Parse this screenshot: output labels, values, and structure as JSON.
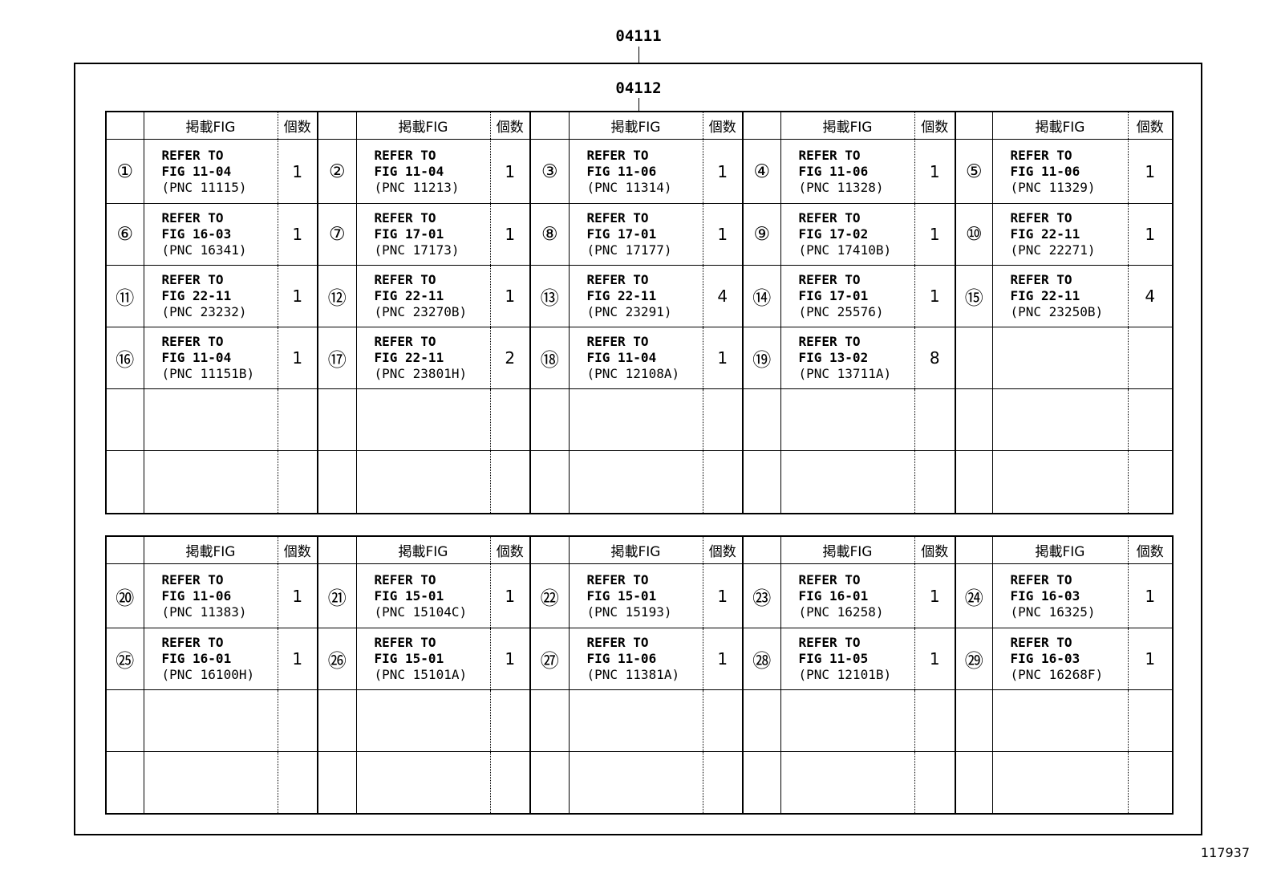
{
  "labels": {
    "outer": "04111",
    "inner": "04112",
    "figure_id": "117937"
  },
  "headers": {
    "fig": "掲載FIG",
    "qty": "個数"
  },
  "tables": [
    {
      "rows": [
        [
          {
            "num": "①",
            "l1": "REFER TO",
            "fig": "FIG 11-04",
            "pnc": "(PNC 11115)",
            "qty": "1"
          },
          {
            "num": "②",
            "l1": "REFER TO",
            "fig": "FIG 11-04",
            "pnc": "(PNC 11213)",
            "qty": "1"
          },
          {
            "num": "③",
            "l1": "REFER TO",
            "fig": "FIG 11-06",
            "pnc": "(PNC 11314)",
            "qty": "1"
          },
          {
            "num": "④",
            "l1": "REFER TO",
            "fig": "FIG 11-06",
            "pnc": "(PNC 11328)",
            "qty": "1"
          },
          {
            "num": "⑤",
            "l1": "REFER TO",
            "fig": "FIG 11-06",
            "pnc": "(PNC 11329)",
            "qty": "1"
          }
        ],
        [
          {
            "num": "⑥",
            "l1": "REFER TO",
            "fig": "FIG 16-03",
            "pnc": "(PNC 16341)",
            "qty": "1"
          },
          {
            "num": "⑦",
            "l1": "REFER TO",
            "fig": "FIG 17-01",
            "pnc": "(PNC 17173)",
            "qty": "1"
          },
          {
            "num": "⑧",
            "l1": "REFER TO",
            "fig": "FIG 17-01",
            "pnc": "(PNC 17177)",
            "qty": "1"
          },
          {
            "num": "⑨",
            "l1": "REFER TO",
            "fig": "FIG 17-02",
            "pnc": "(PNC 17410B)",
            "qty": "1"
          },
          {
            "num": "⑩",
            "l1": "REFER TO",
            "fig": "FIG 22-11",
            "pnc": "(PNC 22271)",
            "qty": "1"
          }
        ],
        [
          {
            "num": "⑪",
            "l1": "REFER TO",
            "fig": "FIG 22-11",
            "pnc": "(PNC 23232)",
            "qty": "1"
          },
          {
            "num": "⑫",
            "l1": "REFER TO",
            "fig": "FIG 22-11",
            "pnc": "(PNC 23270B)",
            "qty": "1"
          },
          {
            "num": "⑬",
            "l1": "REFER TO",
            "fig": "FIG 22-11",
            "pnc": "(PNC 23291)",
            "qty": "4"
          },
          {
            "num": "⑭",
            "l1": "REFER TO",
            "fig": "FIG 17-01",
            "pnc": "(PNC 25576)",
            "qty": "1"
          },
          {
            "num": "⑮",
            "l1": "REFER TO",
            "fig": "FIG 22-11",
            "pnc": "(PNC 23250B)",
            "qty": "4"
          }
        ],
        [
          {
            "num": "⑯",
            "l1": "REFER TO",
            "fig": "FIG 11-04",
            "pnc": "(PNC 11151B)",
            "qty": "1"
          },
          {
            "num": "⑰",
            "l1": "REFER TO",
            "fig": "FIG 22-11",
            "pnc": "(PNC 23801H)",
            "qty": "2"
          },
          {
            "num": "⑱",
            "l1": "REFER TO",
            "fig": "FIG 11-04",
            "pnc": "(PNC 12108A)",
            "qty": "1"
          },
          {
            "num": "⑲",
            "l1": "REFER TO",
            "fig": "FIG 13-02",
            "pnc": "(PNC 13711A)",
            "qty": "8"
          },
          null
        ],
        [
          null,
          null,
          null,
          null,
          null
        ],
        [
          null,
          null,
          null,
          null,
          null
        ]
      ]
    },
    {
      "rows": [
        [
          {
            "num": "⑳",
            "l1": "REFER TO",
            "fig": "FIG 11-06",
            "pnc": "(PNC 11383)",
            "qty": "1"
          },
          {
            "num": "㉑",
            "l1": "REFER TO",
            "fig": "FIG 15-01",
            "pnc": "(PNC 15104C)",
            "qty": "1"
          },
          {
            "num": "㉒",
            "l1": "REFER TO",
            "fig": "FIG 15-01",
            "pnc": "(PNC 15193)",
            "qty": "1"
          },
          {
            "num": "㉓",
            "l1": "REFER TO",
            "fig": "FIG 16-01",
            "pnc": "(PNC 16258)",
            "qty": "1"
          },
          {
            "num": "㉔",
            "l1": "REFER TO",
            "fig": "FIG 16-03",
            "pnc": "(PNC 16325)",
            "qty": "1"
          }
        ],
        [
          {
            "num": "㉕",
            "l1": "REFER TO",
            "fig": "FIG 16-01",
            "pnc": "(PNC 16100H)",
            "qty": "1"
          },
          {
            "num": "㉖",
            "l1": "REFER TO",
            "fig": "FIG 15-01",
            "pnc": "(PNC 15101A)",
            "qty": "1"
          },
          {
            "num": "㉗",
            "l1": "REFER TO",
            "fig": "FIG 11-06",
            "pnc": "(PNC 11381A)",
            "qty": "1"
          },
          {
            "num": "㉘",
            "l1": "REFER TO",
            "fig": "FIG 11-05",
            "pnc": "(PNC 12101B)",
            "qty": "1"
          },
          {
            "num": "㉙",
            "l1": "REFER TO",
            "fig": "FIG 16-03",
            "pnc": "(PNC 16268F)",
            "qty": "1"
          }
        ],
        [
          null,
          null,
          null,
          null,
          null
        ],
        [
          null,
          null,
          null,
          null,
          null
        ]
      ]
    }
  ]
}
